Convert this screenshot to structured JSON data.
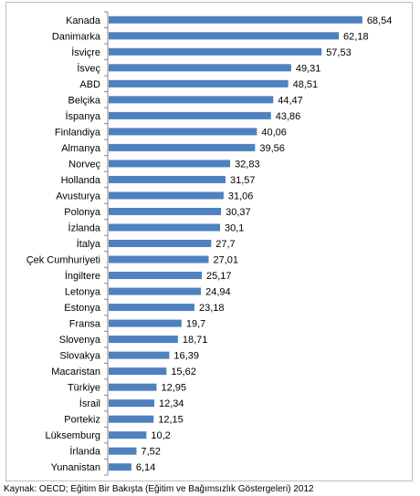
{
  "chart_data": {
    "type": "bar",
    "orientation": "horizontal",
    "categories": [
      "Kanada",
      "Danimarka",
      "İsviçre",
      "İsveç",
      "ABD",
      "Belçika",
      "İspanya",
      "Finlandiya",
      "Almanya",
      "Norveç",
      "Hollanda",
      "Avusturya",
      "Polonya",
      "İzlanda",
      "İtalya",
      "Çek Cumhuriyeti",
      "İngiltere",
      "Letonya",
      "Estonya",
      "Fransa",
      "Slovenya",
      "Slovakya",
      "Macaristan",
      "Türkiye",
      "İsrail",
      "Portekiz",
      "Lüksemburg",
      "İrlanda",
      "Yunanistan"
    ],
    "values": [
      68.54,
      62.18,
      57.53,
      49.31,
      48.51,
      44.47,
      43.86,
      40.06,
      39.56,
      32.83,
      31.57,
      31.06,
      30.37,
      30.1,
      27.7,
      27.01,
      25.17,
      24.94,
      23.18,
      19.7,
      18.71,
      16.39,
      15.62,
      12.95,
      12.34,
      12.15,
      10.2,
      7.52,
      6.14
    ],
    "value_labels": [
      "68,54",
      "62,18",
      "57,53",
      "49,31",
      "48,51",
      "44,47",
      "43,86",
      "40,06",
      "39,56",
      "32,83",
      "31,57",
      "31,06",
      "30,37",
      "30,1",
      "27,7",
      "27,01",
      "25,17",
      "24,94",
      "23,18",
      "19,7",
      "18,71",
      "16,39",
      "15,62",
      "12,95",
      "12,34",
      "12,15",
      "10,2",
      "7,52",
      "6,14"
    ],
    "bar_color": "#4f81bd",
    "xlim": [
      0,
      75
    ],
    "grid": false,
    "legend": "none",
    "title": "",
    "xlabel": "",
    "ylabel": ""
  },
  "footnote": "Kaynak: OECD; Eğitim Bir Bakışta (Eğitim ve Bağımsızlık Göstergeleri) 2012"
}
